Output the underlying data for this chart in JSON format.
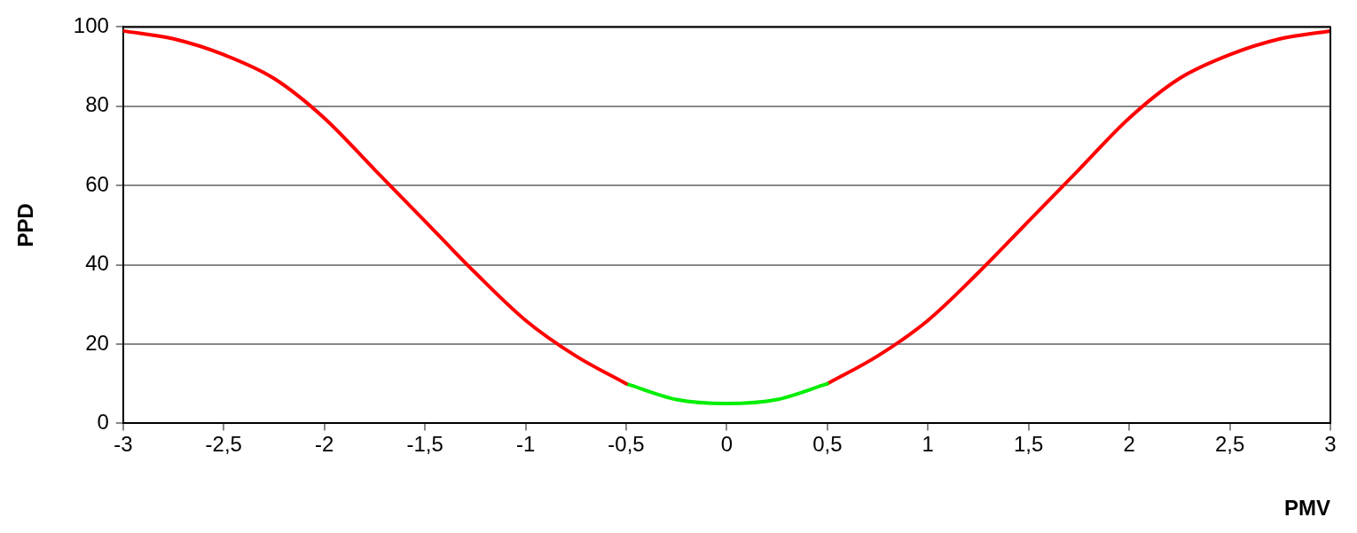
{
  "chart_data": {
    "type": "line",
    "xlabel": "PMV",
    "ylabel": "PPD",
    "series": [
      {
        "color": "#ff0000",
        "x": [
          -3,
          -2.75,
          -2.5,
          -2.25,
          -2,
          -1.75,
          -1.5,
          -1.25,
          -1,
          -0.75,
          -0.5
        ],
        "values": [
          99,
          97,
          93,
          87,
          77,
          64,
          51,
          38,
          26,
          17,
          10
        ]
      },
      {
        "color": "#00ee00",
        "x": [
          -0.5,
          -0.25,
          0,
          0.25,
          0.5
        ],
        "values": [
          10,
          6,
          5,
          6,
          10
        ]
      },
      {
        "color": "#ff0000",
        "x": [
          0.5,
          0.75,
          1,
          1.25,
          1.5,
          1.75,
          2,
          2.25,
          2.5,
          2.75,
          3
        ],
        "values": [
          10,
          17,
          26,
          38,
          51,
          64,
          77,
          87,
          93,
          97,
          99
        ]
      }
    ],
    "xlim": [
      -3,
      3
    ],
    "xticks": [
      -3,
      {
        "value": -2.5,
        "label": "-2,5"
      },
      -2,
      {
        "value": -1.5,
        "label": "-1,5"
      },
      -1,
      {
        "value": -0.5,
        "label": "-0,5"
      },
      0,
      {
        "value": 0.5,
        "label": "0,5"
      },
      1,
      {
        "value": 1.5,
        "label": "1,5"
      },
      2,
      {
        "value": 2.5,
        "label": "2,5"
      },
      3
    ],
    "ylim": [
      0,
      100
    ],
    "yticks": [
      0,
      20,
      40,
      60,
      80,
      100
    ],
    "grid": "y",
    "legend": false,
    "marker": "none",
    "line_style": "solid"
  }
}
